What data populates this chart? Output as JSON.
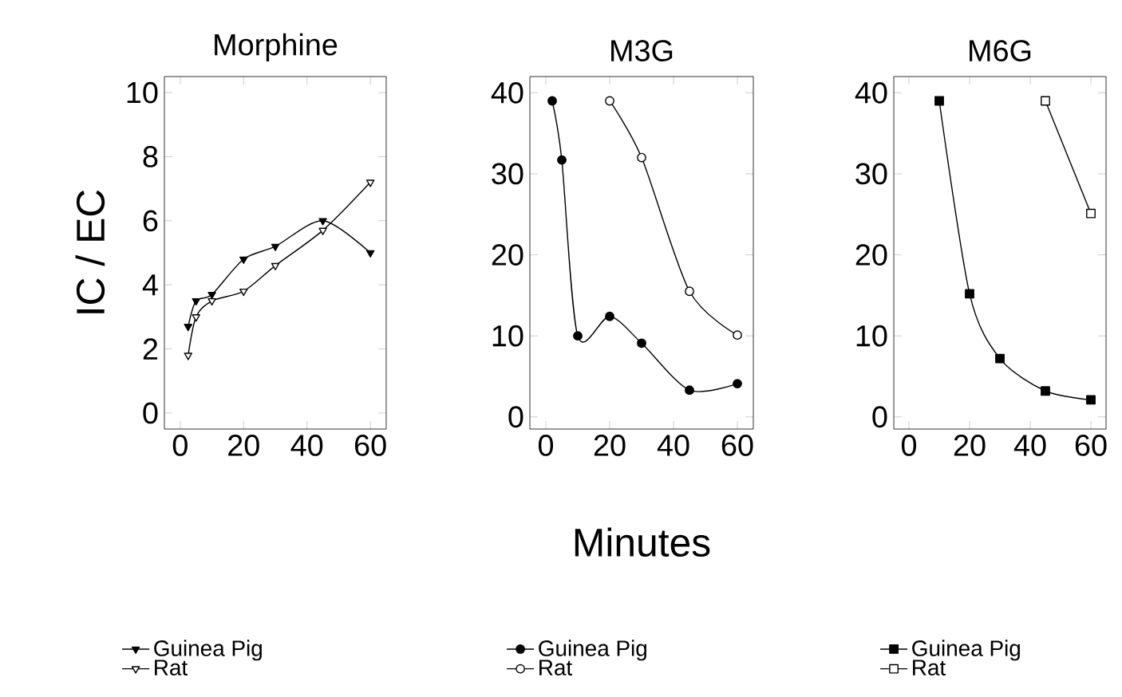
{
  "chart_data": [
    {
      "type": "line",
      "title": "Morphine",
      "ylabel": "IC / EC",
      "xlim": [
        -5,
        65
      ],
      "ylim": [
        -0.5,
        10.5
      ],
      "xticks": [
        0,
        20,
        40,
        60
      ],
      "yticks": [
        0,
        2,
        4,
        6,
        8,
        10
      ],
      "legend": "bottom",
      "marker": "triangle",
      "series": [
        {
          "name": "Guinea Pig",
          "color": "#000000",
          "x": [
            2.5,
            5,
            10,
            20,
            30,
            45,
            60
          ],
          "values": [
            2.7,
            3.5,
            3.7,
            4.8,
            5.2,
            6.0,
            5.0
          ]
        },
        {
          "name": "Rat",
          "color": "#000000",
          "x": [
            2.5,
            5,
            10,
            20,
            30,
            45,
            60
          ],
          "values": [
            1.8,
            3.0,
            3.5,
            3.8,
            4.6,
            5.7,
            7.2
          ]
        }
      ]
    },
    {
      "type": "line",
      "title": "M3G",
      "xlabel": "Minutes",
      "xlim": [
        -5,
        65
      ],
      "ylim": [
        -1.5,
        42
      ],
      "xticks": [
        0,
        20,
        40,
        60
      ],
      "yticks": [
        0,
        10,
        20,
        30,
        40
      ],
      "legend": "bottom",
      "marker": "circle",
      "series": [
        {
          "name": "Guinea Pig",
          "color": "#000000",
          "x": [
            2,
            5,
            10,
            20,
            30,
            45,
            60
          ],
          "values": [
            39,
            31.7,
            10,
            12.4,
            9.1,
            3.3,
            4.1
          ]
        },
        {
          "name": "Rat",
          "color": "#000000",
          "x": [
            20,
            30,
            45,
            60
          ],
          "values": [
            39,
            32,
            15.5,
            10.1
          ]
        }
      ]
    },
    {
      "type": "line",
      "title": "M6G",
      "xlim": [
        -5,
        65
      ],
      "ylim": [
        -1.5,
        42
      ],
      "xticks": [
        0,
        20,
        40,
        60
      ],
      "yticks": [
        0,
        10,
        20,
        30,
        40
      ],
      "legend": "bottom",
      "marker": "square",
      "series": [
        {
          "name": "Guinea Pig",
          "color": "#000000",
          "x": [
            10,
            20,
            30,
            45,
            60
          ],
          "values": [
            39,
            15.2,
            7.2,
            3.2,
            2.1
          ]
        },
        {
          "name": "Rat",
          "color": "#000000",
          "x": [
            45,
            60
          ],
          "values": [
            39,
            25.1
          ]
        }
      ]
    }
  ]
}
